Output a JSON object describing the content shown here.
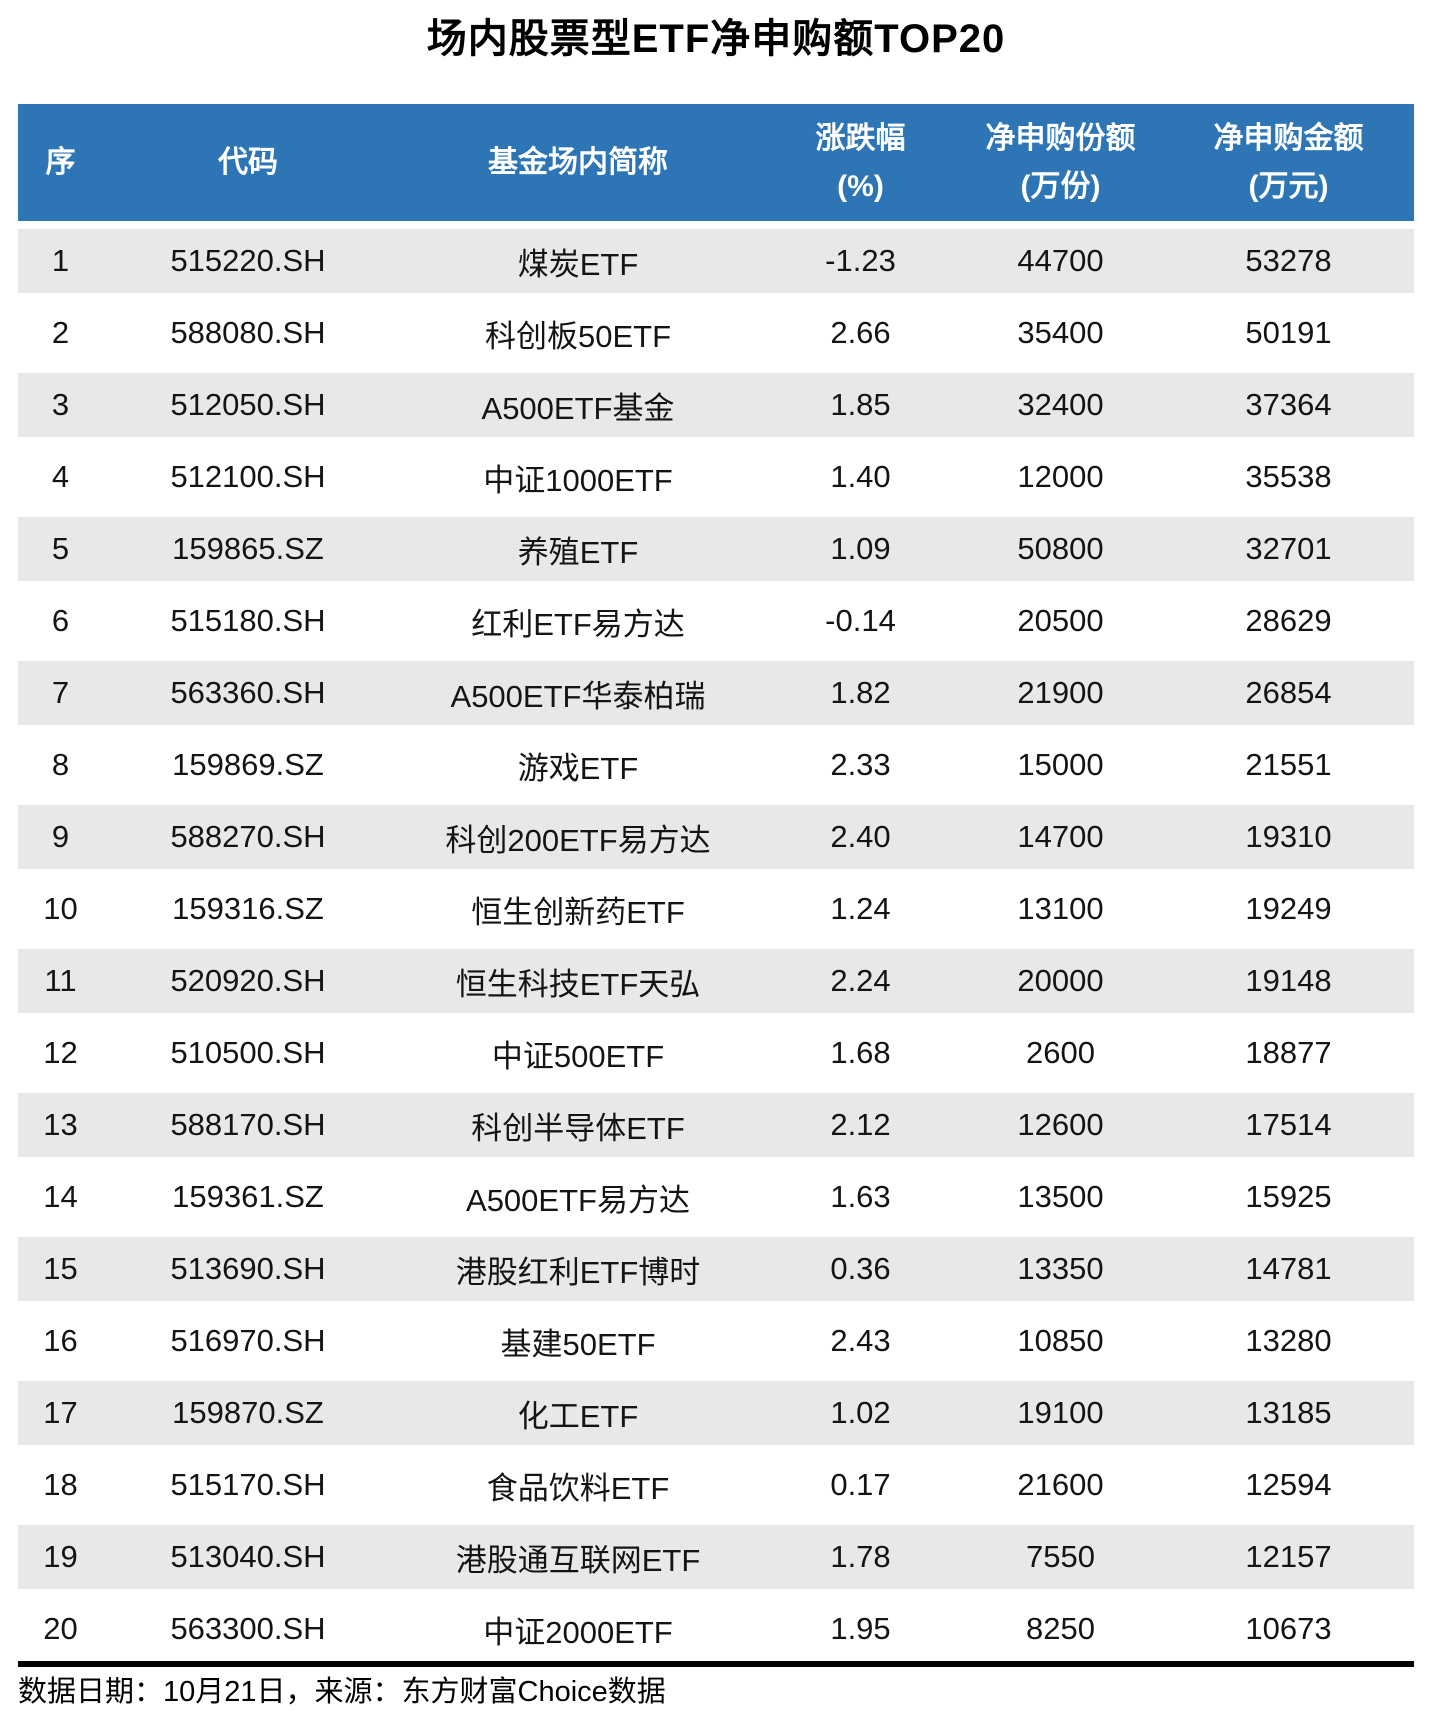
{
  "title": "场内股票型ETF净申购额TOP20",
  "colors": {
    "header_bg": "#2E75B6",
    "header_text": "#FFFFFF",
    "row_stripe": "#E8E8E8",
    "body_text": "#141414",
    "divider": "#000000"
  },
  "table": {
    "columns": [
      {
        "label": "序",
        "sub": ""
      },
      {
        "label": "代码",
        "sub": ""
      },
      {
        "label": "基金场内简称",
        "sub": ""
      },
      {
        "label": "涨跌幅",
        "sub": "(%)"
      },
      {
        "label": "净申购份额",
        "sub": "(万份)"
      },
      {
        "label": "净申购金额",
        "sub": "(万元)"
      }
    ],
    "rows": [
      [
        "1",
        "515220.SH",
        "煤炭ETF",
        "-1.23",
        "44700",
        "53278"
      ],
      [
        "2",
        "588080.SH",
        "科创板50ETF",
        "2.66",
        "35400",
        "50191"
      ],
      [
        "3",
        "512050.SH",
        "A500ETF基金",
        "1.85",
        "32400",
        "37364"
      ],
      [
        "4",
        "512100.SH",
        "中证1000ETF",
        "1.40",
        "12000",
        "35538"
      ],
      [
        "5",
        "159865.SZ",
        "养殖ETF",
        "1.09",
        "50800",
        "32701"
      ],
      [
        "6",
        "515180.SH",
        "红利ETF易方达",
        "-0.14",
        "20500",
        "28629"
      ],
      [
        "7",
        "563360.SH",
        "A500ETF华泰柏瑞",
        "1.82",
        "21900",
        "26854"
      ],
      [
        "8",
        "159869.SZ",
        "游戏ETF",
        "2.33",
        "15000",
        "21551"
      ],
      [
        "9",
        "588270.SH",
        "科创200ETF易方达",
        "2.40",
        "14700",
        "19310"
      ],
      [
        "10",
        "159316.SZ",
        "恒生创新药ETF",
        "1.24",
        "13100",
        "19249"
      ],
      [
        "11",
        "520920.SH",
        "恒生科技ETF天弘",
        "2.24",
        "20000",
        "19148"
      ],
      [
        "12",
        "510500.SH",
        "中证500ETF",
        "1.68",
        "2600",
        "18877"
      ],
      [
        "13",
        "588170.SH",
        "科创半导体ETF",
        "2.12",
        "12600",
        "17514"
      ],
      [
        "14",
        "159361.SZ",
        "A500ETF易方达",
        "1.63",
        "13500",
        "15925"
      ],
      [
        "15",
        "513690.SH",
        "港股红利ETF博时",
        "0.36",
        "13350",
        "14781"
      ],
      [
        "16",
        "516970.SH",
        "基建50ETF",
        "2.43",
        "10850",
        "13280"
      ],
      [
        "17",
        "159870.SZ",
        "化工ETF",
        "1.02",
        "19100",
        "13185"
      ],
      [
        "18",
        "515170.SH",
        "食品饮料ETF",
        "0.17",
        "21600",
        "12594"
      ],
      [
        "19",
        "513040.SH",
        "港股通互联网ETF",
        "1.78",
        "7550",
        "12157"
      ],
      [
        "20",
        "563300.SH",
        "中证2000ETF",
        "1.95",
        "8250",
        "10673"
      ]
    ]
  },
  "footer": {
    "note": "数据日期：10月21日，来源：东方财富Choice数据"
  },
  "chart_data": {
    "type": "table",
    "title": "场内股票型ETF净申购额TOP20",
    "columns": [
      "序",
      "代码",
      "基金场内简称",
      "涨跌幅(%)",
      "净申购份额(万份)",
      "净申购金额(万元)"
    ],
    "rows": [
      [
        1,
        "515220.SH",
        "煤炭ETF",
        -1.23,
        44700,
        53278
      ],
      [
        2,
        "588080.SH",
        "科创板50ETF",
        2.66,
        35400,
        50191
      ],
      [
        3,
        "512050.SH",
        "A500ETF基金",
        1.85,
        32400,
        37364
      ],
      [
        4,
        "512100.SH",
        "中证1000ETF",
        1.4,
        12000,
        35538
      ],
      [
        5,
        "159865.SZ",
        "养殖ETF",
        1.09,
        50800,
        32701
      ],
      [
        6,
        "515180.SH",
        "红利ETF易方达",
        -0.14,
        20500,
        28629
      ],
      [
        7,
        "563360.SH",
        "A500ETF华泰柏瑞",
        1.82,
        21900,
        26854
      ],
      [
        8,
        "159869.SZ",
        "游戏ETF",
        2.33,
        15000,
        21551
      ],
      [
        9,
        "588270.SH",
        "科创200ETF易方达",
        2.4,
        14700,
        19310
      ],
      [
        10,
        "159316.SZ",
        "恒生创新药ETF",
        1.24,
        13100,
        19249
      ],
      [
        11,
        "520920.SH",
        "恒生科技ETF天弘",
        2.24,
        20000,
        19148
      ],
      [
        12,
        "510500.SH",
        "中证500ETF",
        1.68,
        2600,
        18877
      ],
      [
        13,
        "588170.SH",
        "科创半导体ETF",
        2.12,
        12600,
        17514
      ],
      [
        14,
        "159361.SZ",
        "A500ETF易方达",
        1.63,
        13500,
        15925
      ],
      [
        15,
        "513690.SH",
        "港股红利ETF博时",
        0.36,
        13350,
        14781
      ],
      [
        16,
        "516970.SH",
        "基建50ETF",
        2.43,
        10850,
        13280
      ],
      [
        17,
        "159870.SZ",
        "化工ETF",
        1.02,
        19100,
        13185
      ],
      [
        18,
        "515170.SH",
        "食品饮料ETF",
        0.17,
        21600,
        12594
      ],
      [
        19,
        "513040.SH",
        "港股通互联网ETF",
        1.78,
        7550,
        12157
      ],
      [
        20,
        "563300.SH",
        "中证2000ETF",
        1.95,
        8250,
        10673
      ]
    ]
  }
}
